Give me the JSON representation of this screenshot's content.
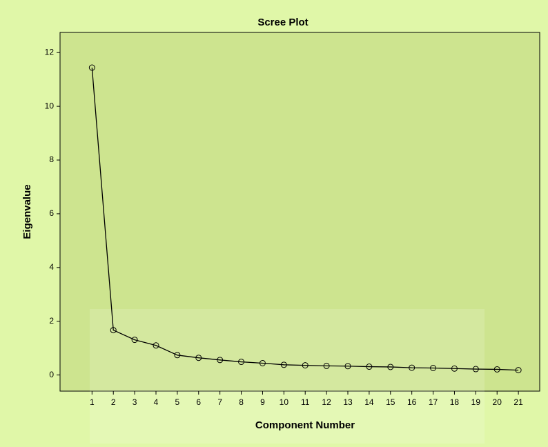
{
  "chart_data": {
    "type": "line",
    "title": "Scree Plot",
    "x_label": "Component Number",
    "y_label": "Eigenvalue",
    "x": [
      1,
      2,
      3,
      4,
      5,
      6,
      7,
      8,
      9,
      10,
      11,
      12,
      13,
      14,
      15,
      16,
      17,
      18,
      19,
      20,
      21
    ],
    "series": [
      {
        "name": "Eigenvalue",
        "color": "#000000",
        "values": [
          11.44,
          1.67,
          1.31,
          1.1,
          0.74,
          0.64,
          0.56,
          0.49,
          0.44,
          0.38,
          0.36,
          0.34,
          0.33,
          0.31,
          0.3,
          0.27,
          0.26,
          0.24,
          0.22,
          0.21,
          0.18
        ]
      }
    ],
    "xlim": [
      -0.5,
      22
    ],
    "xticks": [
      1,
      2,
      3,
      4,
      5,
      6,
      7,
      8,
      9,
      10,
      11,
      12,
      13,
      14,
      15,
      16,
      17,
      18,
      19,
      20,
      21
    ],
    "ylim": [
      -0.6,
      12.75
    ],
    "yticks": [
      0,
      2,
      4,
      6,
      8,
      10,
      12
    ],
    "grid": false
  }
}
